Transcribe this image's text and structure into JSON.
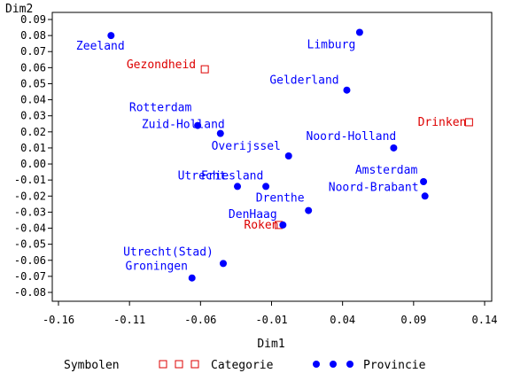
{
  "chart_data": {
    "type": "scatter",
    "title": "",
    "xlabel": "Dim1",
    "ylabel": "Dim2",
    "xlim": [
      -0.16,
      0.14
    ],
    "ylim": [
      -0.08,
      0.09
    ],
    "x_ticks": [
      -0.16,
      -0.11,
      -0.06,
      -0.01,
      0.04,
      0.09,
      0.14
    ],
    "x_tick_labels": [
      "-0.16",
      "-0.11",
      "-0.06",
      "-0.01",
      "0.04",
      "0.09",
      "0.14"
    ],
    "y_ticks": [
      -0.08,
      -0.07,
      -0.06,
      -0.05,
      -0.04,
      -0.03,
      -0.02,
      -0.01,
      0.0,
      0.01,
      0.02,
      0.03,
      0.04,
      0.05,
      0.06,
      0.07,
      0.08,
      0.09
    ],
    "y_tick_labels": [
      "-0.08",
      "-0.07",
      "-0.06",
      "-0.05",
      "-0.04",
      "-0.03",
      "-0.02",
      "-0.01",
      "0.00",
      "0.01",
      "0.02",
      "0.03",
      "0.04",
      "0.05",
      "0.06",
      "0.07",
      "0.08",
      "0.09"
    ],
    "grid": false,
    "legend_position": "bottom",
    "legend": {
      "title": "Symbolen",
      "entries": [
        {
          "label": "Categorie",
          "marker": "square-open",
          "color": "#dd0000"
        },
        {
          "label": "Provincie",
          "marker": "circle-filled",
          "color": "#0000ff"
        }
      ]
    },
    "series": [
      {
        "name": "Categorie",
        "marker": "square-open",
        "color": "#dd0000",
        "points": [
          {
            "label": "Gezondheid",
            "x": -0.057,
            "y": 0.059
          },
          {
            "label": "Drinken",
            "x": 0.129,
            "y": 0.026
          },
          {
            "label": "Roken",
            "x": -0.005,
            "y": -0.038
          }
        ]
      },
      {
        "name": "Provincie",
        "marker": "circle-filled",
        "color": "#0000ff",
        "points": [
          {
            "label": "Zeeland",
            "x": -0.123,
            "y": 0.08
          },
          {
            "label": "Limburg",
            "x": 0.052,
            "y": 0.082
          },
          {
            "label": "Gelderland",
            "x": 0.043,
            "y": 0.046
          },
          {
            "label": "Rotterdam",
            "x": -0.062,
            "y": 0.024
          },
          {
            "label": "Zuid-Holland",
            "x": -0.046,
            "y": 0.019
          },
          {
            "label": "Noord-Holland",
            "x": 0.076,
            "y": 0.01
          },
          {
            "label": "Overijssel",
            "x": 0.002,
            "y": 0.005
          },
          {
            "label": "Amsterdam",
            "x": 0.097,
            "y": -0.011
          },
          {
            "label": "Noord-Brabant",
            "x": 0.098,
            "y": -0.02
          },
          {
            "label": "Utrecht",
            "x": -0.034,
            "y": -0.014
          },
          {
            "label": "Friesland",
            "x": -0.014,
            "y": -0.014
          },
          {
            "label": "Drenthe",
            "x": 0.016,
            "y": -0.029
          },
          {
            "label": "DenHaag",
            "x": -0.002,
            "y": -0.038
          },
          {
            "label": "Utrecht(Stad)",
            "x": -0.044,
            "y": -0.062
          },
          {
            "label": "Groningen",
            "x": -0.066,
            "y": -0.071
          }
        ]
      }
    ]
  }
}
